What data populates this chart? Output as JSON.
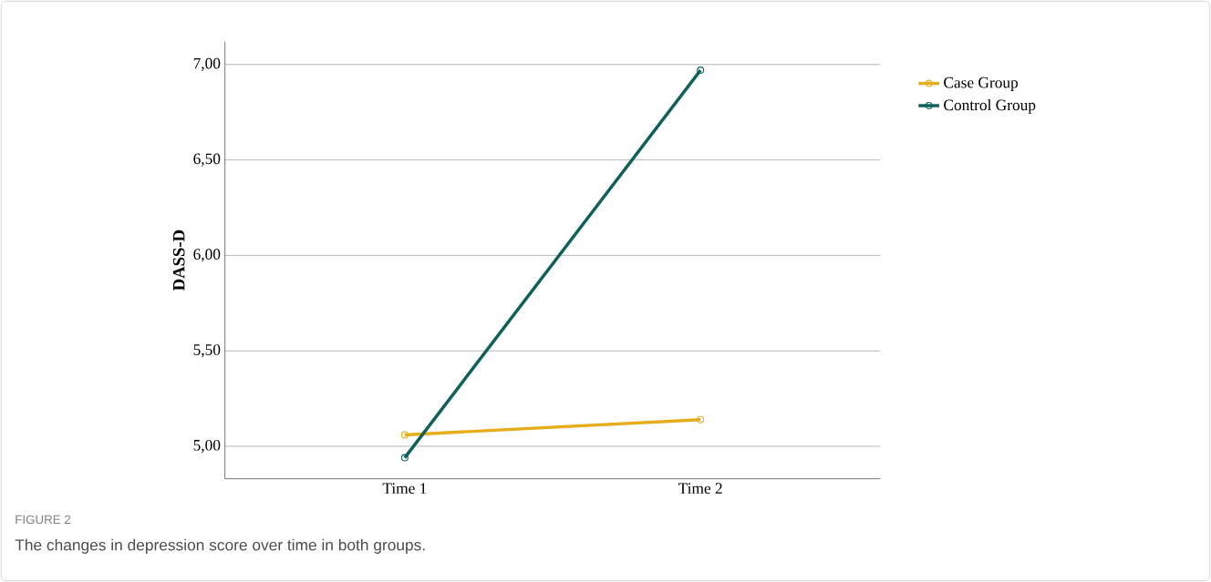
{
  "chart_data": {
    "type": "line",
    "ylabel": "DASS-D",
    "categories": [
      "Time 1",
      "Time 2"
    ],
    "series": [
      {
        "name": "Case Group",
        "color": "#e6ac1a",
        "values": [
          5.06,
          5.14
        ]
      },
      {
        "name": "Control Group",
        "color": "#0f5f5a",
        "values": [
          4.94,
          6.97
        ]
      }
    ],
    "ylim": [
      4.83,
      7.12
    ],
    "yticks": [
      {
        "value": 5,
        "label": "5,00"
      },
      {
        "value": 5.5,
        "label": "5,50"
      },
      {
        "value": 6,
        "label": "6,00"
      },
      {
        "value": 6.5,
        "label": "6,50"
      },
      {
        "value": 7,
        "label": "7,00"
      }
    ],
    "grid": "y",
    "legend": "top right",
    "marker": "circle",
    "line_style": "solid",
    "annotations": [
      "FIGURE 2",
      "The changes in depression score over time in both groups."
    ]
  }
}
